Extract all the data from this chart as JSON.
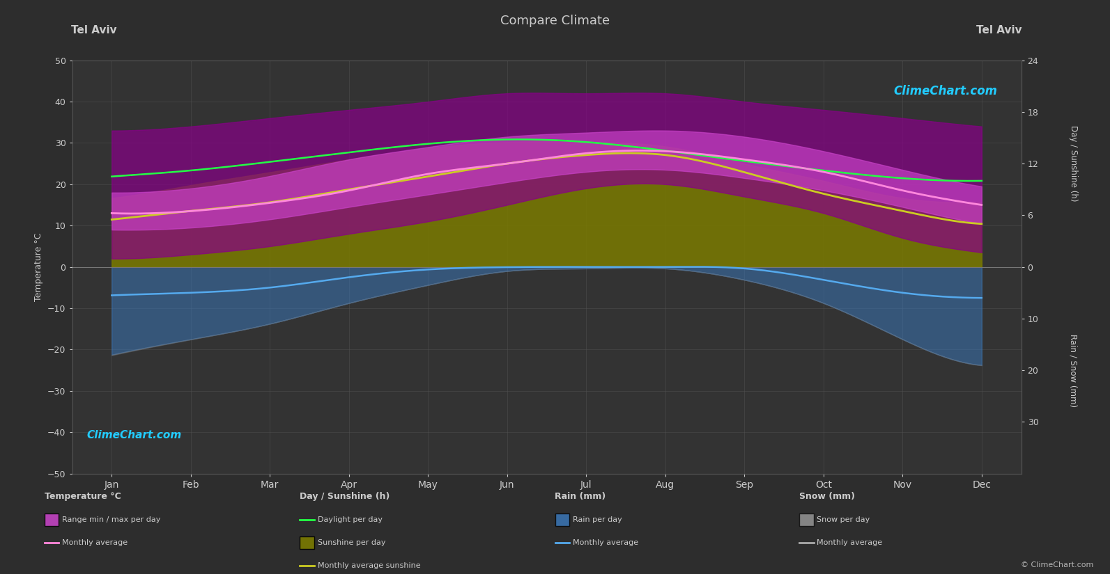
{
  "title": "Compare Climate",
  "city_left": "Tel Aviv",
  "city_right": "Tel Aviv",
  "background_color": "#2d2d2d",
  "plot_bg_color": "#333333",
  "grid_color": "#555555",
  "text_color": "#cccccc",
  "months": [
    "Jan",
    "Feb",
    "Mar",
    "Apr",
    "May",
    "Jun",
    "Jul",
    "Aug",
    "Sep",
    "Oct",
    "Nov",
    "Dec"
  ],
  "temp_ylim": [
    -50,
    50
  ],
  "temp_avg": [
    13.0,
    13.5,
    15.5,
    18.5,
    22.5,
    25.0,
    27.5,
    28.0,
    26.0,
    23.0,
    18.5,
    15.0
  ],
  "temp_max_daily": [
    18.0,
    19.0,
    22.0,
    26.0,
    29.0,
    31.5,
    32.5,
    33.0,
    31.5,
    28.0,
    23.5,
    19.5
  ],
  "temp_min_daily": [
    9.0,
    9.5,
    11.5,
    14.5,
    17.5,
    20.5,
    23.0,
    23.5,
    21.5,
    18.5,
    14.5,
    10.5
  ],
  "temp_max_spikes": [
    33.0,
    34.0,
    36.0,
    38.0,
    40.0,
    42.0,
    42.0,
    42.0,
    40.0,
    38.0,
    36.0,
    34.0
  ],
  "temp_min_spikes": [
    2.0,
    3.0,
    5.0,
    8.0,
    11.0,
    15.0,
    19.0,
    20.0,
    17.0,
    13.0,
    7.0,
    3.5
  ],
  "daylight": [
    10.5,
    11.2,
    12.2,
    13.3,
    14.3,
    14.8,
    14.5,
    13.5,
    12.3,
    11.2,
    10.3,
    10.0
  ],
  "sunshine_avg": [
    5.5,
    6.5,
    7.5,
    9.0,
    10.5,
    12.0,
    13.0,
    13.0,
    11.0,
    8.5,
    6.5,
    5.0
  ],
  "sunshine_daily_max": [
    8.0,
    9.5,
    11.0,
    12.5,
    13.8,
    14.5,
    14.5,
    14.0,
    12.0,
    10.0,
    8.0,
    7.5
  ],
  "sunshine_daily_min": [
    2.0,
    3.0,
    4.0,
    5.0,
    6.5,
    9.0,
    10.5,
    9.5,
    7.0,
    5.0,
    3.0,
    2.0
  ],
  "rain_daily_max": [
    17.0,
    14.0,
    11.0,
    7.0,
    3.5,
    0.8,
    0.3,
    0.3,
    2.5,
    7.0,
    14.0,
    19.0
  ],
  "rain_monthly_avg": [
    5.5,
    5.0,
    4.0,
    2.0,
    0.5,
    0.05,
    0.0,
    0.0,
    0.3,
    2.5,
    5.0,
    6.0
  ],
  "snow_daily_max": [
    0.4,
    0.2,
    0.05,
    0.0,
    0.0,
    0.0,
    0.0,
    0.0,
    0.0,
    0.0,
    0.05,
    0.2
  ],
  "snow_monthly_avg": [
    0.15,
    0.05,
    0.0,
    0.0,
    0.0,
    0.0,
    0.0,
    0.0,
    0.0,
    0.0,
    0.0,
    0.05
  ],
  "watermark_text": "ClimeChart.com",
  "copyright_text": "© ClimeChart.com",
  "sunshine_scale": 50.0,
  "rain_scale": 50.0,
  "sunshine_hours_max": 24.0,
  "rain_mm_max": 40.0
}
